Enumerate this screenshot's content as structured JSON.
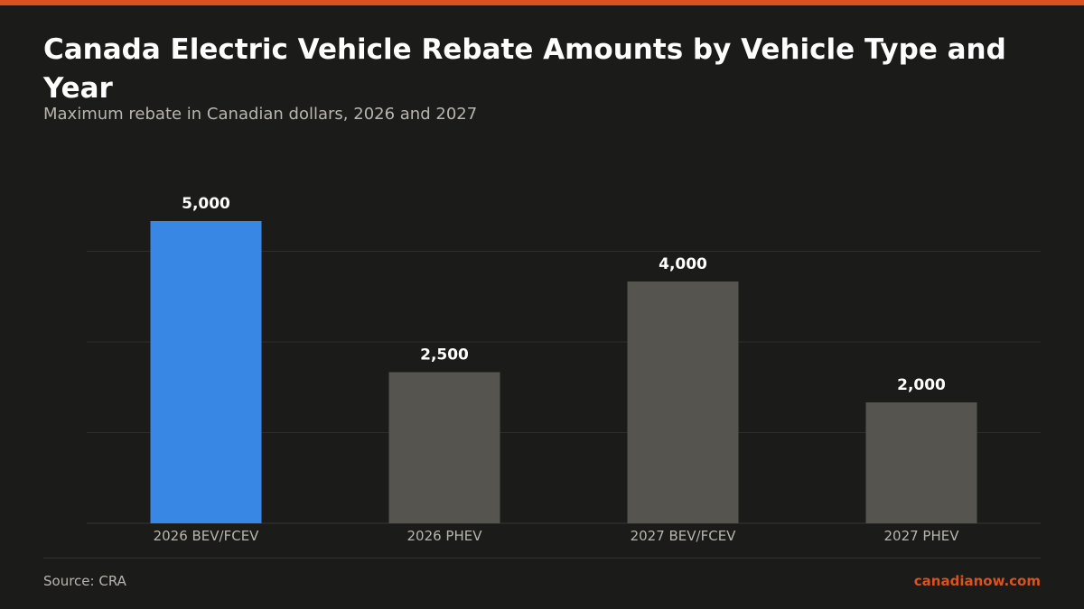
{
  "header": {
    "title": "Canada Electric Vehicle Rebate Amounts by Vehicle Type and Year",
    "subtitle": "Maximum rebate in Canadian dollars, 2026 and 2027"
  },
  "footer": {
    "source": "Source: CRA",
    "brand": "canadianow.com"
  },
  "colors": {
    "accent": "#d9531e",
    "highlight_bar": "#3987e5",
    "default_bar": "#55544f",
    "background": "#1b1b1a"
  },
  "chart_data": {
    "type": "bar",
    "categories": [
      "2026 BEV/FCEV",
      "2026 PHEV",
      "2027 BEV/FCEV",
      "2027 PHEV"
    ],
    "values": [
      5000,
      2500,
      4000,
      2000
    ],
    "value_labels": [
      "5,000",
      "2,500",
      "4,000",
      "2,000"
    ],
    "highlighted": [
      true,
      false,
      false,
      false
    ],
    "ylim": [
      0,
      5000
    ],
    "gridlines": [
      0,
      1500,
      3000,
      4500
    ],
    "grid": true,
    "xlabel": "",
    "ylabel": "",
    "y_tick_labels_shown": false
  }
}
